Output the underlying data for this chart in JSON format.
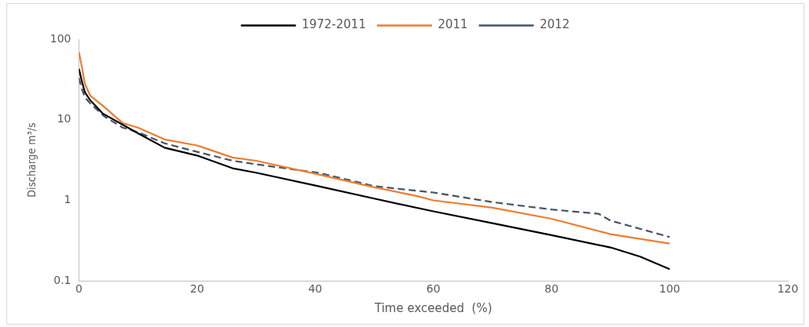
{
  "chart_data": {
    "type": "line",
    "xlabel": "Time exceeded  (%)",
    "ylabel": "Discharge m³/s",
    "log": "y",
    "grid": false,
    "legend": "top",
    "marker": "none",
    "xlim": [
      0,
      120
    ],
    "xticks": [
      0,
      20,
      40,
      60,
      80,
      100,
      120
    ],
    "ylim": [
      0.1,
      100
    ],
    "yticks": [
      0.1,
      1,
      10,
      100
    ],
    "series": [
      {
        "name": "1972-2011",
        "color": "#000000",
        "line_style": "solid",
        "x": [
          0,
          0.5,
          1,
          1.9,
          4,
          7.4,
          10,
          14.5,
          20,
          26,
          30,
          40.5,
          50,
          60,
          70,
          80,
          90,
          95,
          100
        ],
        "values": [
          43,
          30,
          22,
          17.5,
          12,
          8.7,
          6.8,
          4.5,
          3.6,
          2.5,
          2.2,
          1.5,
          1.05,
          0.73,
          0.52,
          0.37,
          0.26,
          0.2,
          0.14
        ]
      },
      {
        "name": "2011",
        "color": "#ed7d31",
        "line_style": "solid",
        "x": [
          0,
          0.5,
          1,
          1.9,
          4,
          7.4,
          10,
          14.5,
          20,
          26,
          30,
          40.5,
          50,
          57,
          60,
          70,
          80,
          90,
          100
        ],
        "values": [
          69,
          45,
          28,
          20,
          15,
          9.1,
          8,
          5.7,
          4.8,
          3.4,
          3.1,
          2.1,
          1.45,
          1.14,
          1.0,
          0.81,
          0.59,
          0.38,
          0.29
        ]
      },
      {
        "name": "2012",
        "color": "#44546a",
        "line_style": "dashed",
        "x": [
          0,
          0.5,
          1,
          1.9,
          4.3,
          7.4,
          10,
          14.5,
          20,
          26,
          30,
          40.5,
          50,
          60,
          70,
          80,
          88,
          90,
          100
        ],
        "values": [
          33,
          24,
          19,
          16,
          11,
          8,
          7,
          5.1,
          4,
          3.1,
          2.8,
          2.2,
          1.5,
          1.25,
          0.95,
          0.77,
          0.68,
          0.56,
          0.35
        ]
      }
    ]
  }
}
